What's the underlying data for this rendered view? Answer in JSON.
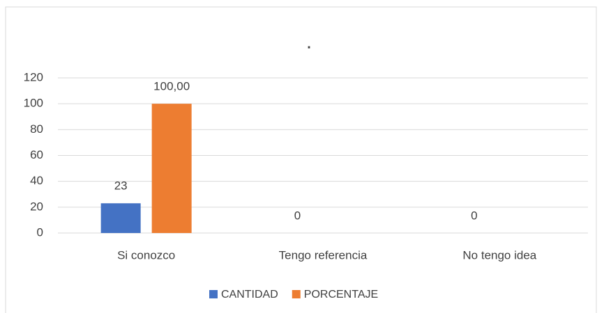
{
  "chart_data": {
    "type": "bar",
    "title": ".",
    "categories": [
      "Si conozco",
      "Tengo referencia",
      "No tengo idea"
    ],
    "series": [
      {
        "name": "CANTIDAD",
        "color": "#4472c4",
        "values": [
          23,
          0,
          0
        ]
      },
      {
        "name": "PORCENTAJE",
        "color": "#ed7d31",
        "values": [
          100,
          null,
          null
        ],
        "value_labels": [
          "100,00",
          null,
          null
        ]
      }
    ],
    "ylim": [
      0,
      120
    ],
    "yticks": [
      0,
      20,
      40,
      60,
      80,
      100,
      120
    ],
    "grid": true,
    "legend": "bottom"
  }
}
